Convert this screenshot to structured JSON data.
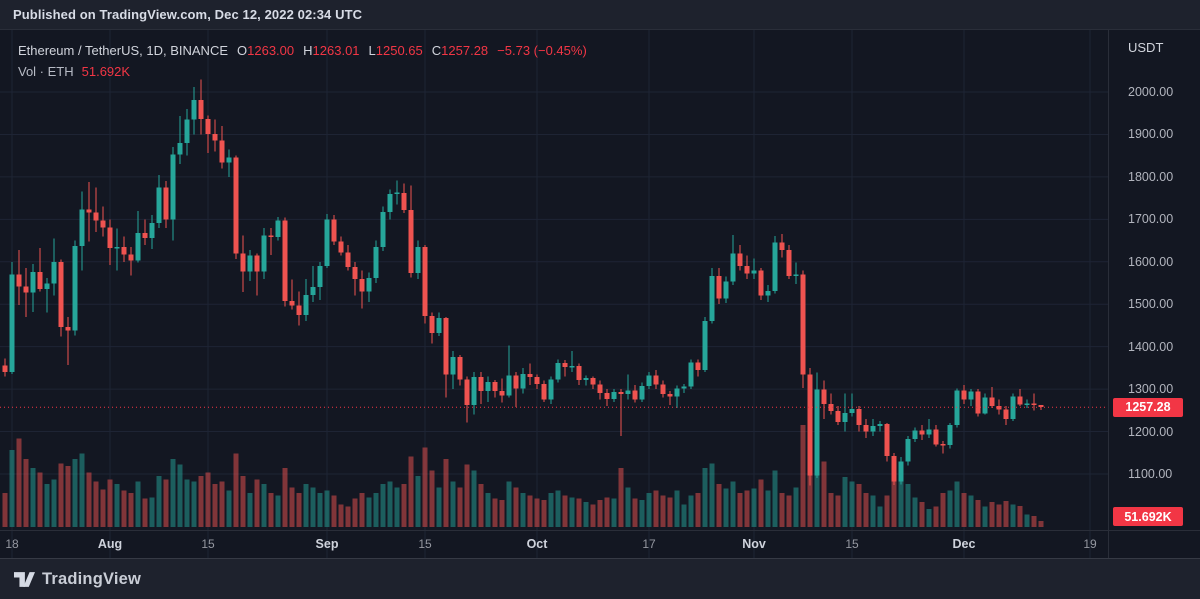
{
  "page": {
    "published": "Published on TradingView.com, Dec 12, 2022 02:34 UTC",
    "footer_brand": "TradingView"
  },
  "legend": {
    "symbol": "Ethereum / TetherUS, 1D, BINANCE",
    "ohlc": [
      {
        "k": "O",
        "v": "1263.00"
      },
      {
        "k": "H",
        "v": "1263.01"
      },
      {
        "k": "L",
        "v": "1250.65"
      },
      {
        "k": "C",
        "v": "1257.28"
      }
    ],
    "change": "−5.73 (−0.45%)",
    "volume_label": "Vol · ETH",
    "volume_value": "51.692K"
  },
  "y_axis": {
    "currency": "USDT",
    "ticks": [
      {
        "label": "2000.00",
        "value": 2000
      },
      {
        "label": "1900.00",
        "value": 1900
      },
      {
        "label": "1800.00",
        "value": 1800
      },
      {
        "label": "1700.00",
        "value": 1700
      },
      {
        "label": "1600.00",
        "value": 1600
      },
      {
        "label": "1500.00",
        "value": 1500
      },
      {
        "label": "1400.00",
        "value": 1400
      },
      {
        "label": "1300.00",
        "value": 1300
      },
      {
        "label": "1200.00",
        "value": 1200
      },
      {
        "label": "1100.00",
        "value": 1100
      }
    ],
    "price_badge": "1257.28",
    "volume_badge": "51.692K"
  },
  "x_axis": {
    "ticks": [
      {
        "label": "18",
        "index": 1,
        "major": false
      },
      {
        "label": "Aug",
        "index": 15,
        "major": true
      },
      {
        "label": "15",
        "index": 29,
        "major": false
      },
      {
        "label": "Sep",
        "index": 46,
        "major": true
      },
      {
        "label": "15",
        "index": 60,
        "major": false
      },
      {
        "label": "Oct",
        "index": 76,
        "major": true
      },
      {
        "label": "17",
        "index": 92,
        "major": false
      },
      {
        "label": "Nov",
        "index": 107,
        "major": true
      },
      {
        "label": "15",
        "index": 121,
        "major": false
      },
      {
        "label": "Dec",
        "index": 137,
        "major": true
      },
      {
        "label": "19",
        "index": 155,
        "major": false
      }
    ]
  },
  "chart_data": {
    "type": "candlestick",
    "title": "Ethereum / TetherUS, 1D, BINANCE",
    "interval": "1D",
    "xlabel": "date",
    "ylabel": "USDT",
    "ylim": [
      1040,
      2090
    ],
    "grid": true,
    "legend_position": "top-left",
    "volume_pane": "overlay-bottom",
    "last_price": 1257.28,
    "last_volume_k": 51.692,
    "colors": {
      "up": "#26a69a",
      "down": "#ef5350",
      "vol_up": "rgba(38,166,154,0.5)",
      "vol_down": "rgba(239,83,80,0.5)",
      "price_line": "#f23645",
      "badge": "#f23645",
      "grid": "#1e2434",
      "background": "#131722"
    },
    "candles_format": [
      "date",
      "open",
      "high",
      "low",
      "close",
      "volume_k_eth"
    ],
    "candles": [
      [
        "2022-07-17",
        1356,
        1372,
        1330,
        1340,
        300
      ],
      [
        "2022-07-18",
        1340,
        1600,
        1336,
        1570,
        680
      ],
      [
        "2022-07-19",
        1570,
        1628,
        1498,
        1542,
        780
      ],
      [
        "2022-07-20",
        1542,
        1585,
        1470,
        1528,
        600
      ],
      [
        "2022-07-21",
        1528,
        1595,
        1482,
        1576,
        520
      ],
      [
        "2022-07-22",
        1576,
        1632,
        1530,
        1536,
        480
      ],
      [
        "2022-07-23",
        1536,
        1562,
        1480,
        1549,
        380
      ],
      [
        "2022-07-24",
        1549,
        1655,
        1520,
        1600,
        420
      ],
      [
        "2022-07-25",
        1600,
        1605,
        1424,
        1446,
        560
      ],
      [
        "2022-07-26",
        1446,
        1470,
        1357,
        1438,
        540
      ],
      [
        "2022-07-27",
        1438,
        1650,
        1426,
        1637,
        600
      ],
      [
        "2022-07-28",
        1637,
        1765,
        1580,
        1723,
        650
      ],
      [
        "2022-07-29",
        1723,
        1788,
        1648,
        1716,
        480
      ],
      [
        "2022-07-30",
        1716,
        1775,
        1670,
        1697,
        400
      ],
      [
        "2022-07-31",
        1697,
        1730,
        1660,
        1681,
        330
      ],
      [
        "2022-08-01",
        1681,
        1700,
        1592,
        1632,
        420
      ],
      [
        "2022-08-02",
        1632,
        1678,
        1580,
        1635,
        380
      ],
      [
        "2022-08-03",
        1635,
        1660,
        1600,
        1617,
        320
      ],
      [
        "2022-08-04",
        1617,
        1635,
        1568,
        1603,
        300
      ],
      [
        "2022-08-05",
        1603,
        1720,
        1598,
        1668,
        400
      ],
      [
        "2022-08-06",
        1668,
        1700,
        1640,
        1656,
        250
      ],
      [
        "2022-08-07",
        1656,
        1710,
        1630,
        1691,
        260
      ],
      [
        "2022-08-08",
        1691,
        1805,
        1680,
        1775,
        450
      ],
      [
        "2022-08-09",
        1775,
        1790,
        1680,
        1700,
        420
      ],
      [
        "2022-08-10",
        1700,
        1870,
        1650,
        1853,
        600
      ],
      [
        "2022-08-11",
        1853,
        1944,
        1830,
        1880,
        550
      ],
      [
        "2022-08-12",
        1880,
        1960,
        1850,
        1935,
        420
      ],
      [
        "2022-08-13",
        1935,
        2012,
        1900,
        1981,
        400
      ],
      [
        "2022-08-14",
        1981,
        2030,
        1900,
        1936,
        450
      ],
      [
        "2022-08-15",
        1936,
        1945,
        1856,
        1901,
        480
      ],
      [
        "2022-08-16",
        1901,
        1935,
        1860,
        1886,
        380
      ],
      [
        "2022-08-17",
        1886,
        1920,
        1820,
        1834,
        400
      ],
      [
        "2022-08-18",
        1834,
        1865,
        1800,
        1846,
        320
      ],
      [
        "2022-08-19",
        1846,
        1850,
        1606,
        1620,
        650
      ],
      [
        "2022-08-20",
        1620,
        1662,
        1529,
        1577,
        450
      ],
      [
        "2022-08-21",
        1577,
        1628,
        1555,
        1615,
        300
      ],
      [
        "2022-08-22",
        1615,
        1620,
        1521,
        1577,
        420
      ],
      [
        "2022-08-23",
        1577,
        1680,
        1560,
        1662,
        380
      ],
      [
        "2022-08-24",
        1662,
        1680,
        1616,
        1658,
        300
      ],
      [
        "2022-08-25",
        1658,
        1705,
        1650,
        1697,
        280
      ],
      [
        "2022-08-26",
        1697,
        1704,
        1495,
        1508,
        520
      ],
      [
        "2022-08-27",
        1508,
        1558,
        1487,
        1497,
        350
      ],
      [
        "2022-08-28",
        1497,
        1530,
        1450,
        1475,
        300
      ],
      [
        "2022-08-29",
        1475,
        1560,
        1460,
        1522,
        380
      ],
      [
        "2022-08-30",
        1522,
        1590,
        1505,
        1540,
        350
      ],
      [
        "2022-08-31",
        1540,
        1600,
        1510,
        1590,
        300
      ],
      [
        "2022-09-01",
        1590,
        1712,
        1585,
        1700,
        320
      ],
      [
        "2022-09-02",
        1700,
        1710,
        1640,
        1648,
        280
      ],
      [
        "2022-09-03",
        1648,
        1660,
        1615,
        1622,
        200
      ],
      [
        "2022-09-04",
        1622,
        1640,
        1580,
        1588,
        180
      ],
      [
        "2022-09-05",
        1588,
        1600,
        1520,
        1560,
        250
      ],
      [
        "2022-09-06",
        1560,
        1580,
        1490,
        1530,
        300
      ],
      [
        "2022-09-07",
        1530,
        1575,
        1505,
        1562,
        260
      ],
      [
        "2022-09-08",
        1562,
        1650,
        1550,
        1635,
        300
      ],
      [
        "2022-09-09",
        1635,
        1730,
        1625,
        1717,
        380
      ],
      [
        "2022-09-10",
        1717,
        1770,
        1700,
        1760,
        400
      ],
      [
        "2022-09-11",
        1760,
        1792,
        1735,
        1762,
        350
      ],
      [
        "2022-09-12",
        1762,
        1785,
        1715,
        1722,
        380
      ],
      [
        "2022-09-13",
        1722,
        1780,
        1563,
        1573,
        620
      ],
      [
        "2022-09-14",
        1573,
        1650,
        1560,
        1635,
        450
      ],
      [
        "2022-09-15",
        1635,
        1640,
        1455,
        1472,
        700
      ],
      [
        "2022-09-16",
        1472,
        1480,
        1407,
        1432,
        500
      ],
      [
        "2022-09-17",
        1432,
        1480,
        1425,
        1468,
        350
      ],
      [
        "2022-09-18",
        1468,
        1470,
        1280,
        1335,
        600
      ],
      [
        "2022-09-19",
        1335,
        1390,
        1300,
        1376,
        400
      ],
      [
        "2022-09-20",
        1376,
        1380,
        1308,
        1323,
        350
      ],
      [
        "2022-09-21",
        1323,
        1330,
        1221,
        1262,
        550
      ],
      [
        "2022-09-22",
        1262,
        1340,
        1240,
        1328,
        500
      ],
      [
        "2022-09-23",
        1328,
        1340,
        1265,
        1295,
        380
      ],
      [
        "2022-09-24",
        1295,
        1330,
        1270,
        1317,
        300
      ],
      [
        "2022-09-25",
        1317,
        1322,
        1280,
        1295,
        250
      ],
      [
        "2022-09-26",
        1295,
        1325,
        1268,
        1285,
        240
      ],
      [
        "2022-09-27",
        1285,
        1403,
        1280,
        1332,
        400
      ],
      [
        "2022-09-28",
        1332,
        1340,
        1258,
        1302,
        350
      ],
      [
        "2022-09-29",
        1302,
        1350,
        1290,
        1336,
        300
      ],
      [
        "2022-09-30",
        1336,
        1360,
        1310,
        1329,
        280
      ],
      [
        "2022-10-01",
        1329,
        1335,
        1300,
        1312,
        250
      ],
      [
        "2022-10-02",
        1312,
        1320,
        1270,
        1276,
        240
      ],
      [
        "2022-10-03",
        1276,
        1330,
        1265,
        1323,
        300
      ],
      [
        "2022-10-04",
        1323,
        1370,
        1315,
        1362,
        320
      ],
      [
        "2022-10-05",
        1362,
        1368,
        1330,
        1352,
        280
      ],
      [
        "2022-10-06",
        1352,
        1390,
        1340,
        1354,
        260
      ],
      [
        "2022-10-07",
        1354,
        1360,
        1310,
        1321,
        250
      ],
      [
        "2022-10-08",
        1321,
        1332,
        1308,
        1326,
        220
      ],
      [
        "2022-10-09",
        1326,
        1330,
        1300,
        1311,
        200
      ],
      [
        "2022-10-10",
        1311,
        1320,
        1275,
        1291,
        240
      ],
      [
        "2022-10-11",
        1291,
        1300,
        1260,
        1277,
        260
      ],
      [
        "2022-10-12",
        1277,
        1300,
        1270,
        1293,
        250
      ],
      [
        "2022-10-13",
        1293,
        1300,
        1190,
        1288,
        520
      ],
      [
        "2022-10-14",
        1288,
        1335,
        1275,
        1297,
        350
      ],
      [
        "2022-10-15",
        1297,
        1310,
        1268,
        1276,
        250
      ],
      [
        "2022-10-16",
        1276,
        1315,
        1270,
        1307,
        240
      ],
      [
        "2022-10-17",
        1307,
        1340,
        1300,
        1332,
        300
      ],
      [
        "2022-10-18",
        1332,
        1345,
        1300,
        1311,
        320
      ],
      [
        "2022-10-19",
        1311,
        1320,
        1280,
        1288,
        280
      ],
      [
        "2022-10-20",
        1288,
        1295,
        1262,
        1283,
        260
      ],
      [
        "2022-10-21",
        1283,
        1308,
        1256,
        1301,
        320
      ],
      [
        "2022-10-22",
        1301,
        1312,
        1291,
        1306,
        200
      ],
      [
        "2022-10-23",
        1306,
        1370,
        1300,
        1363,
        280
      ],
      [
        "2022-10-24",
        1363,
        1370,
        1330,
        1345,
        300
      ],
      [
        "2022-10-25",
        1345,
        1470,
        1340,
        1461,
        520
      ],
      [
        "2022-10-26",
        1461,
        1585,
        1455,
        1566,
        560
      ],
      [
        "2022-10-27",
        1566,
        1585,
        1500,
        1514,
        380
      ],
      [
        "2022-10-28",
        1514,
        1565,
        1503,
        1554,
        340
      ],
      [
        "2022-10-29",
        1554,
        1663,
        1545,
        1619,
        400
      ],
      [
        "2022-10-30",
        1619,
        1640,
        1580,
        1590,
        300
      ],
      [
        "2022-10-31",
        1590,
        1615,
        1560,
        1572,
        320
      ],
      [
        "2022-11-01",
        1572,
        1608,
        1560,
        1579,
        340
      ],
      [
        "2022-11-02",
        1579,
        1585,
        1510,
        1520,
        420
      ],
      [
        "2022-11-03",
        1520,
        1545,
        1505,
        1531,
        320
      ],
      [
        "2022-11-04",
        1531,
        1661,
        1525,
        1645,
        500
      ],
      [
        "2022-11-05",
        1645,
        1665,
        1610,
        1628,
        300
      ],
      [
        "2022-11-06",
        1628,
        1640,
        1560,
        1567,
        280
      ],
      [
        "2022-11-07",
        1567,
        1598,
        1548,
        1570,
        350
      ],
      [
        "2022-11-08",
        1570,
        1580,
        1303,
        1334,
        900
      ],
      [
        "2022-11-09",
        1334,
        1350,
        1073,
        1096,
        1050
      ],
      [
        "2022-11-10",
        1096,
        1339,
        1090,
        1299,
        840
      ],
      [
        "2022-11-11",
        1299,
        1320,
        1230,
        1265,
        580
      ],
      [
        "2022-11-12",
        1265,
        1290,
        1240,
        1249,
        300
      ],
      [
        "2022-11-13",
        1249,
        1260,
        1215,
        1222,
        280
      ],
      [
        "2022-11-14",
        1222,
        1290,
        1200,
        1244,
        440
      ],
      [
        "2022-11-15",
        1244,
        1290,
        1235,
        1253,
        400
      ],
      [
        "2022-11-16",
        1253,
        1260,
        1200,
        1216,
        380
      ],
      [
        "2022-11-17",
        1216,
        1230,
        1185,
        1200,
        300
      ],
      [
        "2022-11-18",
        1200,
        1230,
        1190,
        1213,
        280
      ],
      [
        "2022-11-19",
        1213,
        1225,
        1200,
        1218,
        180
      ],
      [
        "2022-11-20",
        1218,
        1220,
        1130,
        1142,
        280
      ],
      [
        "2022-11-21",
        1142,
        1150,
        1074,
        1082,
        500
      ],
      [
        "2022-11-22",
        1082,
        1140,
        1075,
        1130,
        420
      ],
      [
        "2022-11-23",
        1130,
        1190,
        1120,
        1183,
        380
      ],
      [
        "2022-11-24",
        1183,
        1210,
        1175,
        1202,
        260
      ],
      [
        "2022-11-25",
        1202,
        1215,
        1180,
        1193,
        220
      ],
      [
        "2022-11-26",
        1193,
        1230,
        1185,
        1205,
        160
      ],
      [
        "2022-11-27",
        1205,
        1215,
        1165,
        1170,
        180
      ],
      [
        "2022-11-28",
        1170,
        1178,
        1148,
        1168,
        300
      ],
      [
        "2022-11-29",
        1168,
        1220,
        1160,
        1216,
        320
      ],
      [
        "2022-11-30",
        1216,
        1302,
        1210,
        1297,
        400
      ],
      [
        "2022-12-01",
        1297,
        1310,
        1265,
        1276,
        300
      ],
      [
        "2022-12-02",
        1276,
        1300,
        1260,
        1294,
        280
      ],
      [
        "2022-12-03",
        1294,
        1300,
        1235,
        1243,
        240
      ],
      [
        "2022-12-04",
        1243,
        1290,
        1240,
        1280,
        180
      ],
      [
        "2022-12-05",
        1280,
        1305,
        1255,
        1260,
        220
      ],
      [
        "2022-12-06",
        1260,
        1275,
        1240,
        1252,
        200
      ],
      [
        "2022-12-07",
        1252,
        1260,
        1215,
        1230,
        230
      ],
      [
        "2022-12-08",
        1230,
        1290,
        1225,
        1282,
        200
      ],
      [
        "2022-12-09",
        1282,
        1300,
        1260,
        1264,
        185
      ],
      [
        "2022-12-10",
        1264,
        1275,
        1255,
        1265,
        110
      ],
      [
        "2022-12-11",
        1265,
        1290,
        1250,
        1263,
        95
      ],
      [
        "2022-12-12",
        1263.0,
        1263.01,
        1250.65,
        1257.28,
        51.692
      ]
    ]
  }
}
